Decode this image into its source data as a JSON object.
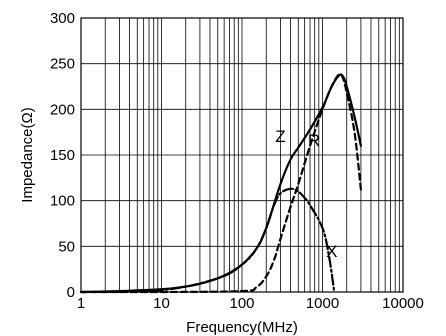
{
  "chart_data": {
    "type": "line",
    "xlabel": "Frequency(MHz)",
    "ylabel": "Impedance(Ω)",
    "xscale": "log",
    "xlim": [
      1,
      10000
    ],
    "ylim": [
      0,
      300
    ],
    "grid": true,
    "xticks": [
      1,
      10,
      100,
      1000,
      10000
    ],
    "xtick_labels": [
      "1",
      "10",
      "100",
      "1000",
      "10000"
    ],
    "yticks": [
      0,
      50,
      100,
      150,
      200,
      250,
      300
    ],
    "ytick_labels": [
      "0",
      "50",
      "100",
      "150",
      "200",
      "250",
      "300"
    ],
    "series": [
      {
        "name": "Z",
        "line_style": "solid",
        "x": [
          1,
          3,
          10,
          20,
          30,
          50,
          70,
          100,
          150,
          200,
          300,
          400,
          500,
          700,
          1000,
          1300,
          1600,
          1800,
          2000,
          2500,
          3000
        ],
        "y": [
          0,
          1,
          3,
          6,
          9,
          15,
          21,
          30,
          47,
          70,
          118,
          145,
          158,
          178,
          202,
          225,
          237,
          236,
          225,
          192,
          160
        ]
      },
      {
        "name": "R",
        "line_style": "dashed",
        "x": [
          1,
          10,
          100,
          150,
          200,
          250,
          300,
          400,
          500,
          700,
          1000,
          1300,
          1600,
          1800,
          2000,
          2500,
          3000
        ],
        "y": [
          0,
          0,
          1,
          5,
          17,
          35,
          58,
          93,
          118,
          160,
          200,
          225,
          238,
          234,
          218,
          175,
          112
        ]
      },
      {
        "name": "X",
        "line_style": "dash-dot",
        "x": [
          1,
          10,
          50,
          100,
          150,
          200,
          250,
          300,
          400,
          500,
          600,
          700,
          1000,
          1200,
          1400
        ],
        "y": [
          0,
          2,
          15,
          30,
          47,
          70,
          95,
          108,
          113,
          110,
          103,
          95,
          70,
          40,
          0
        ]
      }
    ]
  }
}
